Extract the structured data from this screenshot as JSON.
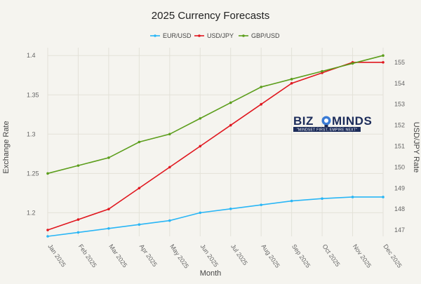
{
  "chart_data": {
    "type": "line",
    "title": "2025 Currency Forecasts",
    "xlabel": "Month",
    "ylabel": "Exchange Rate",
    "y2label": "USD/JPY Rate",
    "categories": [
      "Jan 2025",
      "Feb 2025",
      "Mar 2025",
      "Apr 2025",
      "May 2025",
      "Jun 2025",
      "Jul 2025",
      "Aug 2025",
      "Sep 2025",
      "Oct 2025",
      "Nov 2025",
      "Dec 2025"
    ],
    "ylim": [
      1.17,
      1.41
    ],
    "y2lim": [
      146.7,
      155.7
    ],
    "yticks": [
      1.2,
      1.25,
      1.3,
      1.35,
      1.4
    ],
    "yticks_labels": [
      "1.2",
      "1.25",
      "1.3",
      "1.35",
      "1.4"
    ],
    "y2ticks": [
      147,
      148,
      149,
      150,
      151,
      152,
      153,
      154,
      155
    ],
    "y2ticks_labels": [
      "147",
      "148",
      "149",
      "150",
      "151",
      "152",
      "153",
      "154",
      "155"
    ],
    "legend_position": "top-center",
    "grid": true,
    "series": [
      {
        "name": "EUR/USD",
        "axis": "left",
        "color": "#29b6f6",
        "values": [
          1.17,
          1.175,
          1.18,
          1.185,
          1.19,
          1.2,
          1.205,
          1.21,
          1.215,
          1.218,
          1.22,
          1.22
        ]
      },
      {
        "name": "USD/JPY",
        "axis": "right",
        "color": "#e0171f",
        "values": [
          147,
          147.5,
          148,
          149,
          150,
          151,
          152,
          153,
          154,
          154.5,
          155,
          155
        ]
      },
      {
        "name": "GBP/USD",
        "axis": "left",
        "color": "#5c9e1c",
        "values": [
          1.25,
          1.26,
          1.27,
          1.29,
          1.3,
          1.32,
          1.34,
          1.36,
          1.37,
          1.38,
          1.39,
          1.4
        ]
      }
    ]
  },
  "logo": {
    "text_left": "BIZ",
    "text_right": "MINDS",
    "tagline": "\"MINDSET FIRST, EMPIRE NEXT\"",
    "colors": {
      "primary": "#1c2c5a",
      "accent": "#3a7bd5"
    }
  }
}
